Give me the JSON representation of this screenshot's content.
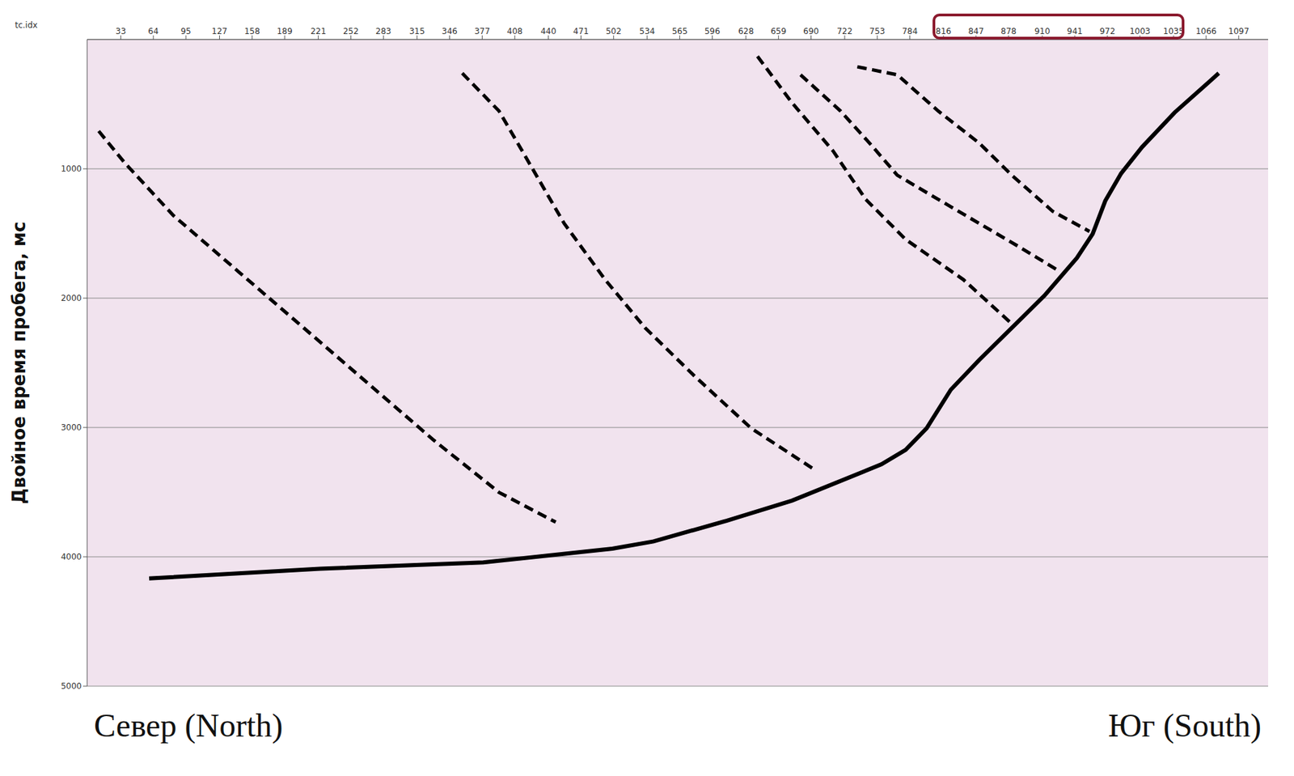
{
  "chart_data": {
    "type": "line",
    "x_label": "tc.idx",
    "y_label": "Двойное время пробега, мс",
    "left_label": "Север (North)",
    "right_label": "Юг (South)",
    "xlim": [
      1,
      1125
    ],
    "xticks": [
      33,
      64,
      95,
      127,
      158,
      189,
      221,
      252,
      283,
      315,
      346,
      377,
      408,
      440,
      471,
      502,
      534,
      565,
      596,
      628,
      659,
      690,
      722,
      753,
      784,
      816,
      847,
      878,
      910,
      941,
      972,
      1003,
      1035,
      1066,
      1097
    ],
    "ylim": [
      0,
      5000
    ],
    "yticks": [
      1000,
      2000,
      3000,
      4000,
      5000
    ],
    "grid": true,
    "highlight_range": [
      816,
      1035
    ],
    "series": [
      {
        "color": "#000000",
        "line_style": "solid",
        "x": [
          60,
          223,
          378,
          501,
          540,
          610,
          672,
          757,
          780,
          800,
          823,
          850,
          885,
          912,
          943,
          958,
          970,
          985,
          1005,
          1036,
          1078
        ],
        "values": [
          4167,
          4092,
          4043,
          3937,
          3881,
          3720,
          3565,
          3285,
          3173,
          3006,
          2708,
          2478,
          2198,
          1981,
          1689,
          1503,
          1248,
          1037,
          832,
          565,
          261
        ]
      },
      {
        "color": "#000000",
        "line_style": "dashed",
        "x": [
          12,
          37,
          83,
          145,
          207,
          269,
          331,
          393,
          447
        ],
        "values": [
          708,
          956,
          1360,
          1795,
          2229,
          2664,
          3099,
          3502,
          3732
        ]
      },
      {
        "color": "#000000",
        "line_style": "dashed",
        "x": [
          358,
          393,
          424,
          455,
          494,
          532,
          579,
          633,
          695
        ],
        "values": [
          261,
          553,
          987,
          1422,
          1857,
          2229,
          2602,
          3006,
          3335
        ]
      },
      {
        "color": "#000000",
        "line_style": "dashed",
        "x": [
          639,
          672,
          711,
          742,
          780,
          835,
          881
        ],
        "values": [
          130,
          491,
          863,
          1236,
          1546,
          1857,
          2198
        ]
      },
      {
        "color": "#000000",
        "line_style": "dashed",
        "x": [
          680,
          718,
          749,
          772,
          811,
          850,
          889,
          927
        ],
        "values": [
          273,
          553,
          832,
          1049,
          1236,
          1422,
          1608,
          1795
        ]
      },
      {
        "color": "#000000",
        "line_style": "dashed",
        "x": [
          734,
          772,
          811,
          850,
          881,
          920,
          955
        ],
        "values": [
          211,
          273,
          553,
          801,
          1049,
          1329,
          1484
        ]
      }
    ]
  }
}
